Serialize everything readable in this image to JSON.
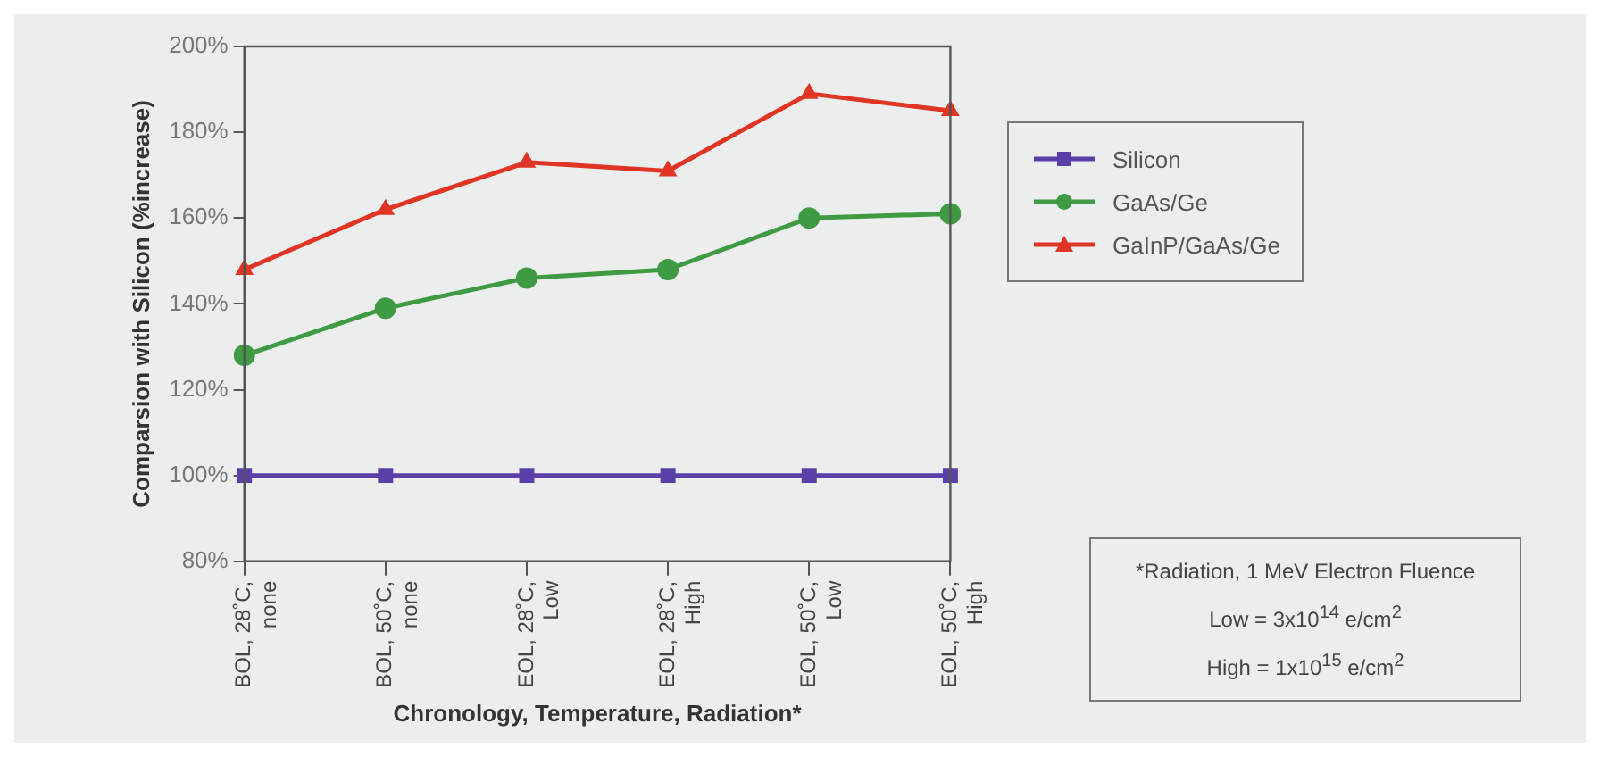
{
  "chart_data": {
    "type": "line",
    "ylabel": "Comparsion with Silicon (%increase)",
    "xlabel": "Chronology, Temperature, Radiation*",
    "categories": [
      "BOL, 28˚C, none",
      "BOL, 50˚C, none",
      "EOL, 28˚C, Low",
      "EOL, 28˚C, High",
      "EOL, 50˚C, Low",
      "EOL, 50˚C, High"
    ],
    "series": [
      {
        "name": "Silicon",
        "color": "#5a3fa8",
        "marker": "square",
        "values": [
          100,
          100,
          100,
          100,
          100,
          100
        ]
      },
      {
        "name": "GaAs/Ge",
        "color": "#3f9a44",
        "marker": "circle",
        "values": [
          128,
          139,
          146,
          148,
          160,
          161
        ]
      },
      {
        "name": "GaInP/GaAs/Ge",
        "color": "#e03424",
        "marker": "triangle",
        "values": [
          148,
          162,
          173,
          171,
          189,
          185
        ]
      }
    ],
    "ylim": [
      80,
      200
    ],
    "yticks": [
      {
        "value": 80,
        "label": "80%"
      },
      {
        "value": 100,
        "label": "100%"
      },
      {
        "value": 120,
        "label": "120%"
      },
      {
        "value": 140,
        "label": "140%"
      },
      {
        "value": 160,
        "label": "160%"
      },
      {
        "value": 180,
        "label": "180%"
      },
      {
        "value": 200,
        "label": "200%"
      }
    ],
    "grid": false,
    "legend": "right",
    "line_style": "solid",
    "annotations": [
      "*Radiation, 1 MeV Electron Fluence",
      "Low = 3x10$^{14}$ e/cm$^{2}$",
      "High = 1x10$^{15}$ e/cm$^{2}$"
    ]
  }
}
